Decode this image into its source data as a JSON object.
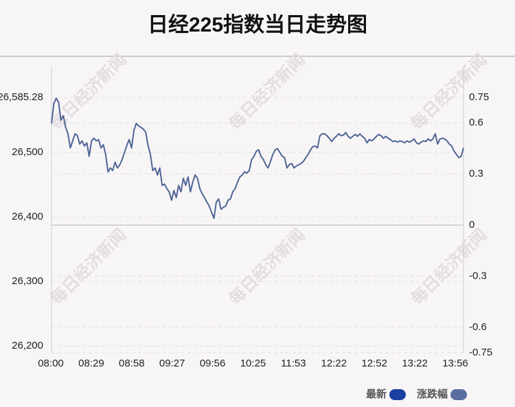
{
  "chart_data": {
    "type": "line",
    "title": "日经225指数当日走势图",
    "watermark": "每日经济新闻",
    "x_labels": [
      "08:00",
      "08:29",
      "08:58",
      "09:27",
      "09:56",
      "10:25",
      "11:53",
      "12:22",
      "12:52",
      "13:22",
      "13:56"
    ],
    "series": [
      {
        "name": "最新",
        "color": "#1a3fa0",
        "line_color": "#4f6596",
        "values": [
          26545,
          26576,
          26584,
          26578,
          26550,
          26557,
          26539,
          26529,
          26507,
          26518,
          26529,
          26526,
          26513,
          26518,
          26510,
          26515,
          26494,
          26518,
          26522,
          26518,
          26520,
          26507,
          26512,
          26497,
          26470,
          26476,
          26472,
          26485,
          26476,
          26481,
          26489,
          26500,
          26511,
          26520,
          26507,
          26534,
          26545,
          26541,
          26539,
          26536,
          26532,
          26511,
          26497,
          26472,
          26476,
          26465,
          26476,
          26449,
          26451,
          26444,
          26439,
          26426,
          26441,
          26430,
          26449,
          26439,
          26460,
          26449,
          26462,
          26439,
          26454,
          26465,
          26460,
          26444,
          26436,
          26430,
          26423,
          26417,
          26407,
          26398,
          26423,
          26428,
          26412,
          26415,
          26417,
          26426,
          26428,
          26439,
          26444,
          26454,
          26462,
          26465,
          26470,
          26468,
          26472,
          26489,
          26494,
          26502,
          26504,
          26494,
          26489,
          26481,
          26476,
          26486,
          26497,
          26504,
          26506,
          26500,
          26494,
          26492,
          26476,
          26481,
          26483,
          26476,
          26479,
          26481,
          26483,
          26486,
          26492,
          26497,
          26504,
          26509,
          26510,
          26507,
          26526,
          26529,
          26529,
          26526,
          26522,
          26517,
          26522,
          26525,
          26529,
          26526,
          26527,
          26531,
          26525,
          26522,
          26525,
          26528,
          26525,
          26529,
          26525,
          26522,
          26515,
          26520,
          26518,
          26521,
          26525,
          26528,
          26526,
          26522,
          26525,
          26522,
          26520,
          26517,
          26518,
          26516,
          26518,
          26517,
          26515,
          26518,
          26516,
          26518,
          26521,
          26515,
          26513,
          26516,
          26518,
          26517,
          26521,
          26518,
          26521,
          26529,
          26513,
          26521,
          26522,
          26521,
          26518,
          26513,
          26510,
          26502,
          26497,
          26492,
          26494,
          26507
        ]
      },
      {
        "name": "涨跌幅",
        "color": "#5a6fa0",
        "axis": "y2",
        "values": []
      }
    ],
    "ylim": [
      26189.46,
      26585.28
    ],
    "yticks": [
      {
        "value": 26585.28,
        "label": "26,585.28"
      },
      {
        "value": 26500,
        "label": "26,500"
      },
      {
        "value": 26400,
        "label": "26,400"
      },
      {
        "value": 26300,
        "label": "26,300"
      },
      {
        "value": 26200,
        "label": "26,200"
      }
    ],
    "y2lim": [
      -0.75,
      0.75
    ],
    "y2ticks": [
      0.75,
      0.6,
      0.3,
      0,
      -0.3,
      -0.6,
      -0.75
    ],
    "grid": true
  }
}
